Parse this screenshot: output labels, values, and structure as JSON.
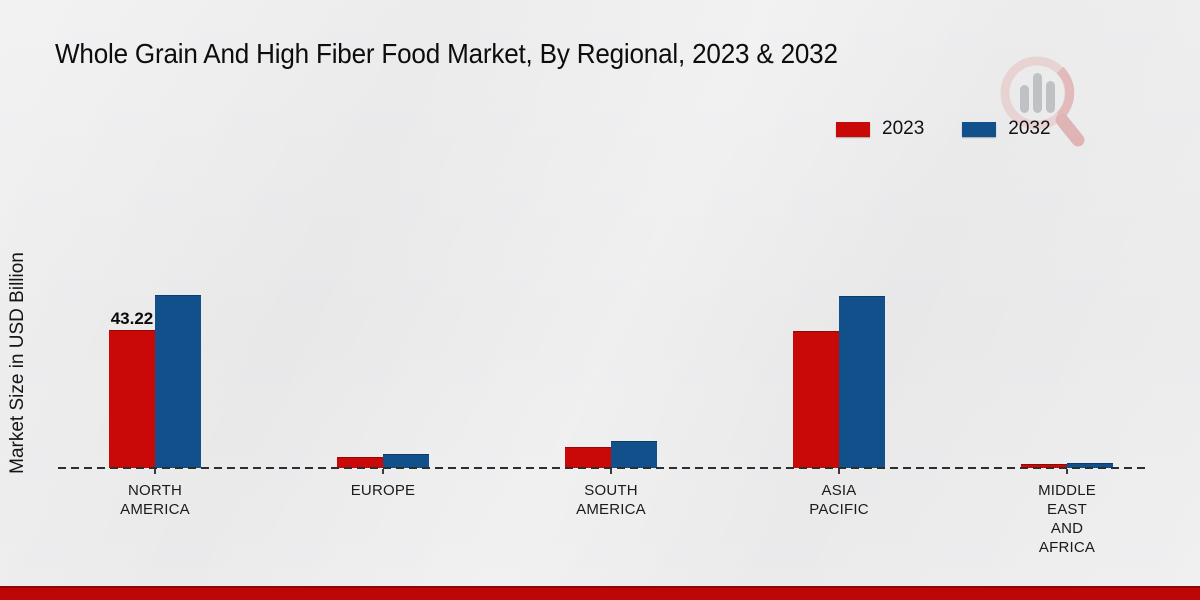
{
  "title": "Whole Grain And High Fiber Food Market, By Regional, 2023 & 2032",
  "y_axis_label": "Market Size in USD Billion",
  "legend": {
    "items": [
      {
        "label": "2023",
        "color": "#c90808"
      },
      {
        "label": "2032",
        "color": "#11508a"
      }
    ]
  },
  "annotation": {
    "text": "43.22",
    "series": "2023",
    "category": "NORTH AMERICA"
  },
  "colors": {
    "series_2023": "#c90808",
    "series_2032": "#11508a",
    "background": "#eaeaeb",
    "footer_band": "#bd0606",
    "baseline": "#2e2e2e",
    "text": "#0d0d0d"
  },
  "chart_data": {
    "type": "bar",
    "title": "Whole Grain And High Fiber Food Market, By Regional, 2023 & 2032",
    "xlabel": "",
    "ylabel": "Market Size in USD Billion",
    "categories": [
      "NORTH AMERICA",
      "EUROPE",
      "SOUTH AMERICA",
      "ASIA PACIFIC",
      "MIDDLE EAST AND AFRICA"
    ],
    "category_label_lines": [
      [
        "NORTH",
        "AMERICA"
      ],
      [
        "EUROPE"
      ],
      [
        "SOUTH",
        "AMERICA"
      ],
      [
        "ASIA",
        "PACIFIC"
      ],
      [
        "MIDDLE",
        "EAST",
        "AND",
        "AFRICA"
      ]
    ],
    "series": [
      {
        "name": "2023",
        "color": "#c90808",
        "values": [
          43.22,
          3.4,
          6.6,
          43.0,
          1.1
        ]
      },
      {
        "name": "2032",
        "color": "#11508a",
        "values": [
          54.2,
          4.5,
          8.5,
          54.0,
          1.6
        ]
      }
    ],
    "data_labels": [
      {
        "series": "2023",
        "category": "NORTH AMERICA",
        "text": "43.22"
      }
    ],
    "ylim": [
      0,
      60
    ],
    "grid": false,
    "legend_position": "top-right",
    "baseline_style": "dashed"
  }
}
